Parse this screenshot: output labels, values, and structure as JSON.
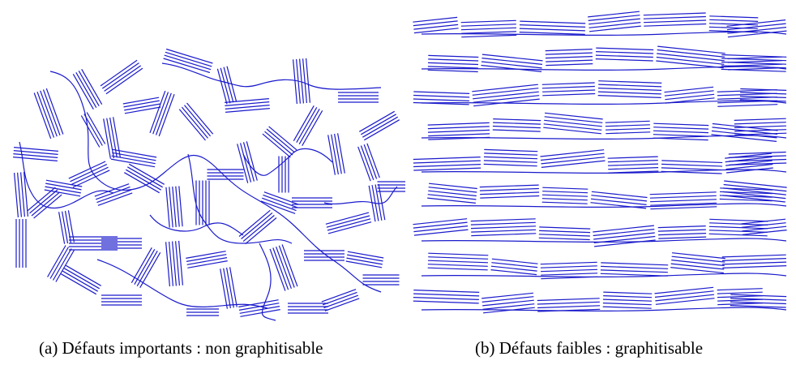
{
  "figure": {
    "line_color": "#1a1acc",
    "panels": [
      {
        "id": "a",
        "caption": "(a)  Défauts importants : non graphitisable"
      },
      {
        "id": "b",
        "caption": "(b)  Défauts faibles : graphitisable"
      }
    ]
  }
}
